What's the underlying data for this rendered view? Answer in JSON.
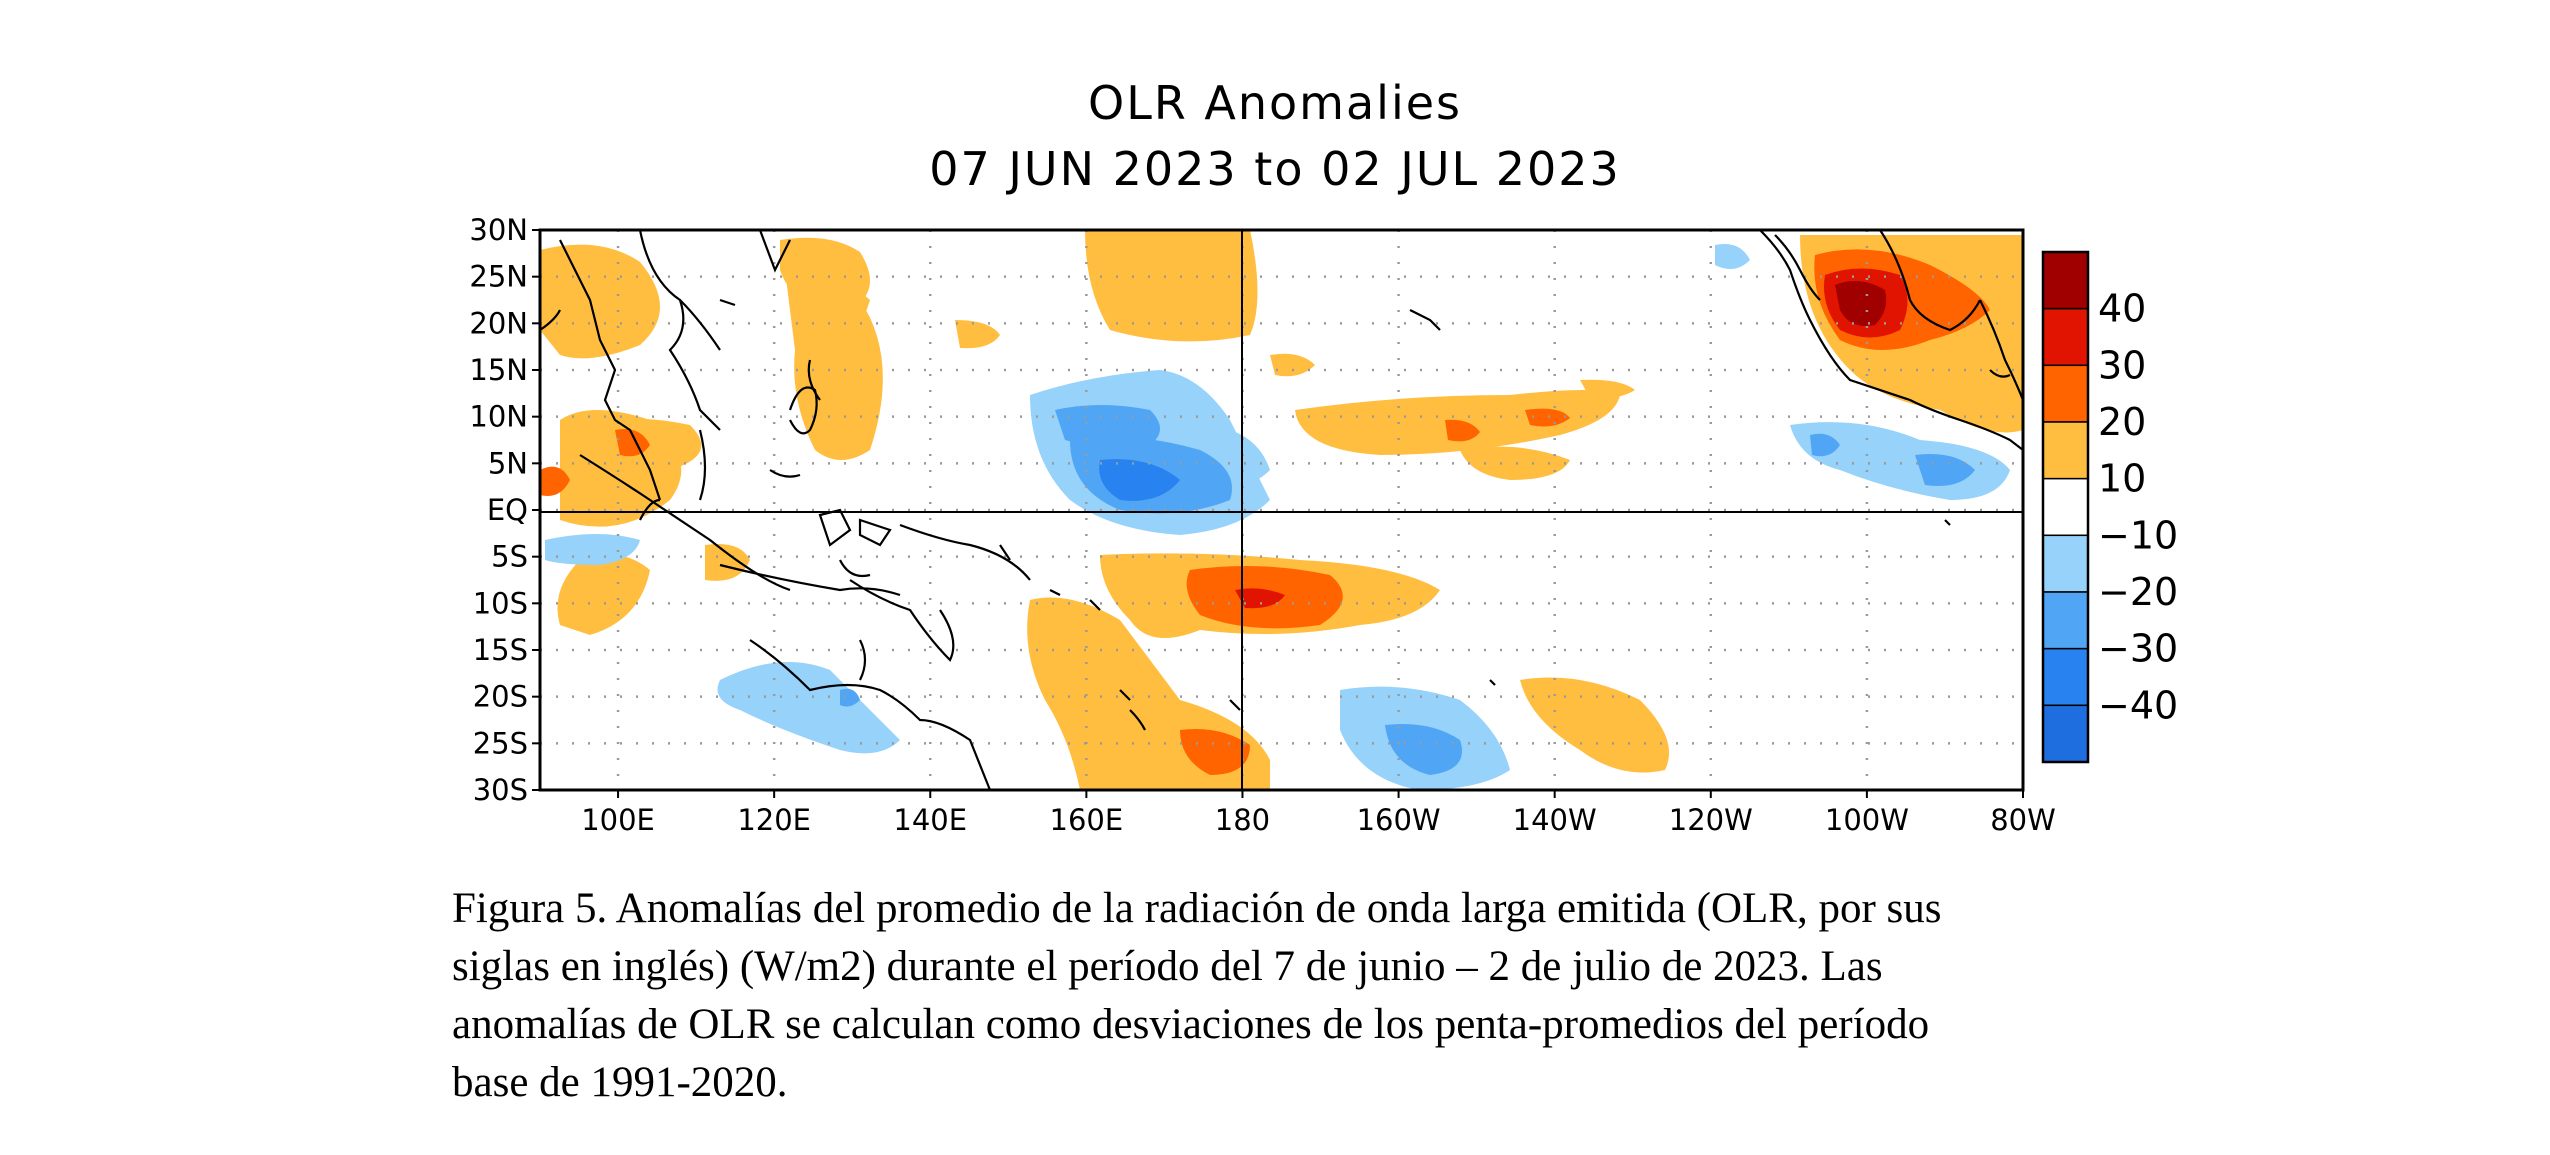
{
  "title": {
    "line1": "OLR Anomalies",
    "line2": "07 JUN 2023 to 02 JUL 2023"
  },
  "axes": {
    "lat_labels": [
      "30N",
      "25N",
      "20N",
      "15N",
      "10N",
      "5N",
      "EQ",
      "5S",
      "10S",
      "15S",
      "20S",
      "25S",
      "30S"
    ],
    "lon_labels": [
      "100E",
      "120E",
      "140E",
      "160E",
      "180",
      "160W",
      "140W",
      "120W",
      "100W",
      "80W"
    ]
  },
  "colorbar": {
    "labels": [
      "40",
      "30",
      "20",
      "10",
      "−10",
      "−20",
      "−30",
      "−40"
    ],
    "colors": [
      "#a00000",
      "#e01400",
      "#ff6400",
      "#ffbe40",
      "#ffffff",
      "#96d2fa",
      "#50a5f5",
      "#2882f0",
      "#1e6ee0"
    ]
  },
  "caption": {
    "line1": "Figura 5. Anomalías del promedio de la radiación de onda larga emitida (OLR, por sus",
    "line2": "siglas en inglés) (W/m2) durante el período del 7 de junio – 2 de julio de 2023.  Las",
    "line3": "anomalías de OLR se calculan como desviaciones de los penta-promedios del período",
    "line4": "base de 1991-2020."
  }
}
